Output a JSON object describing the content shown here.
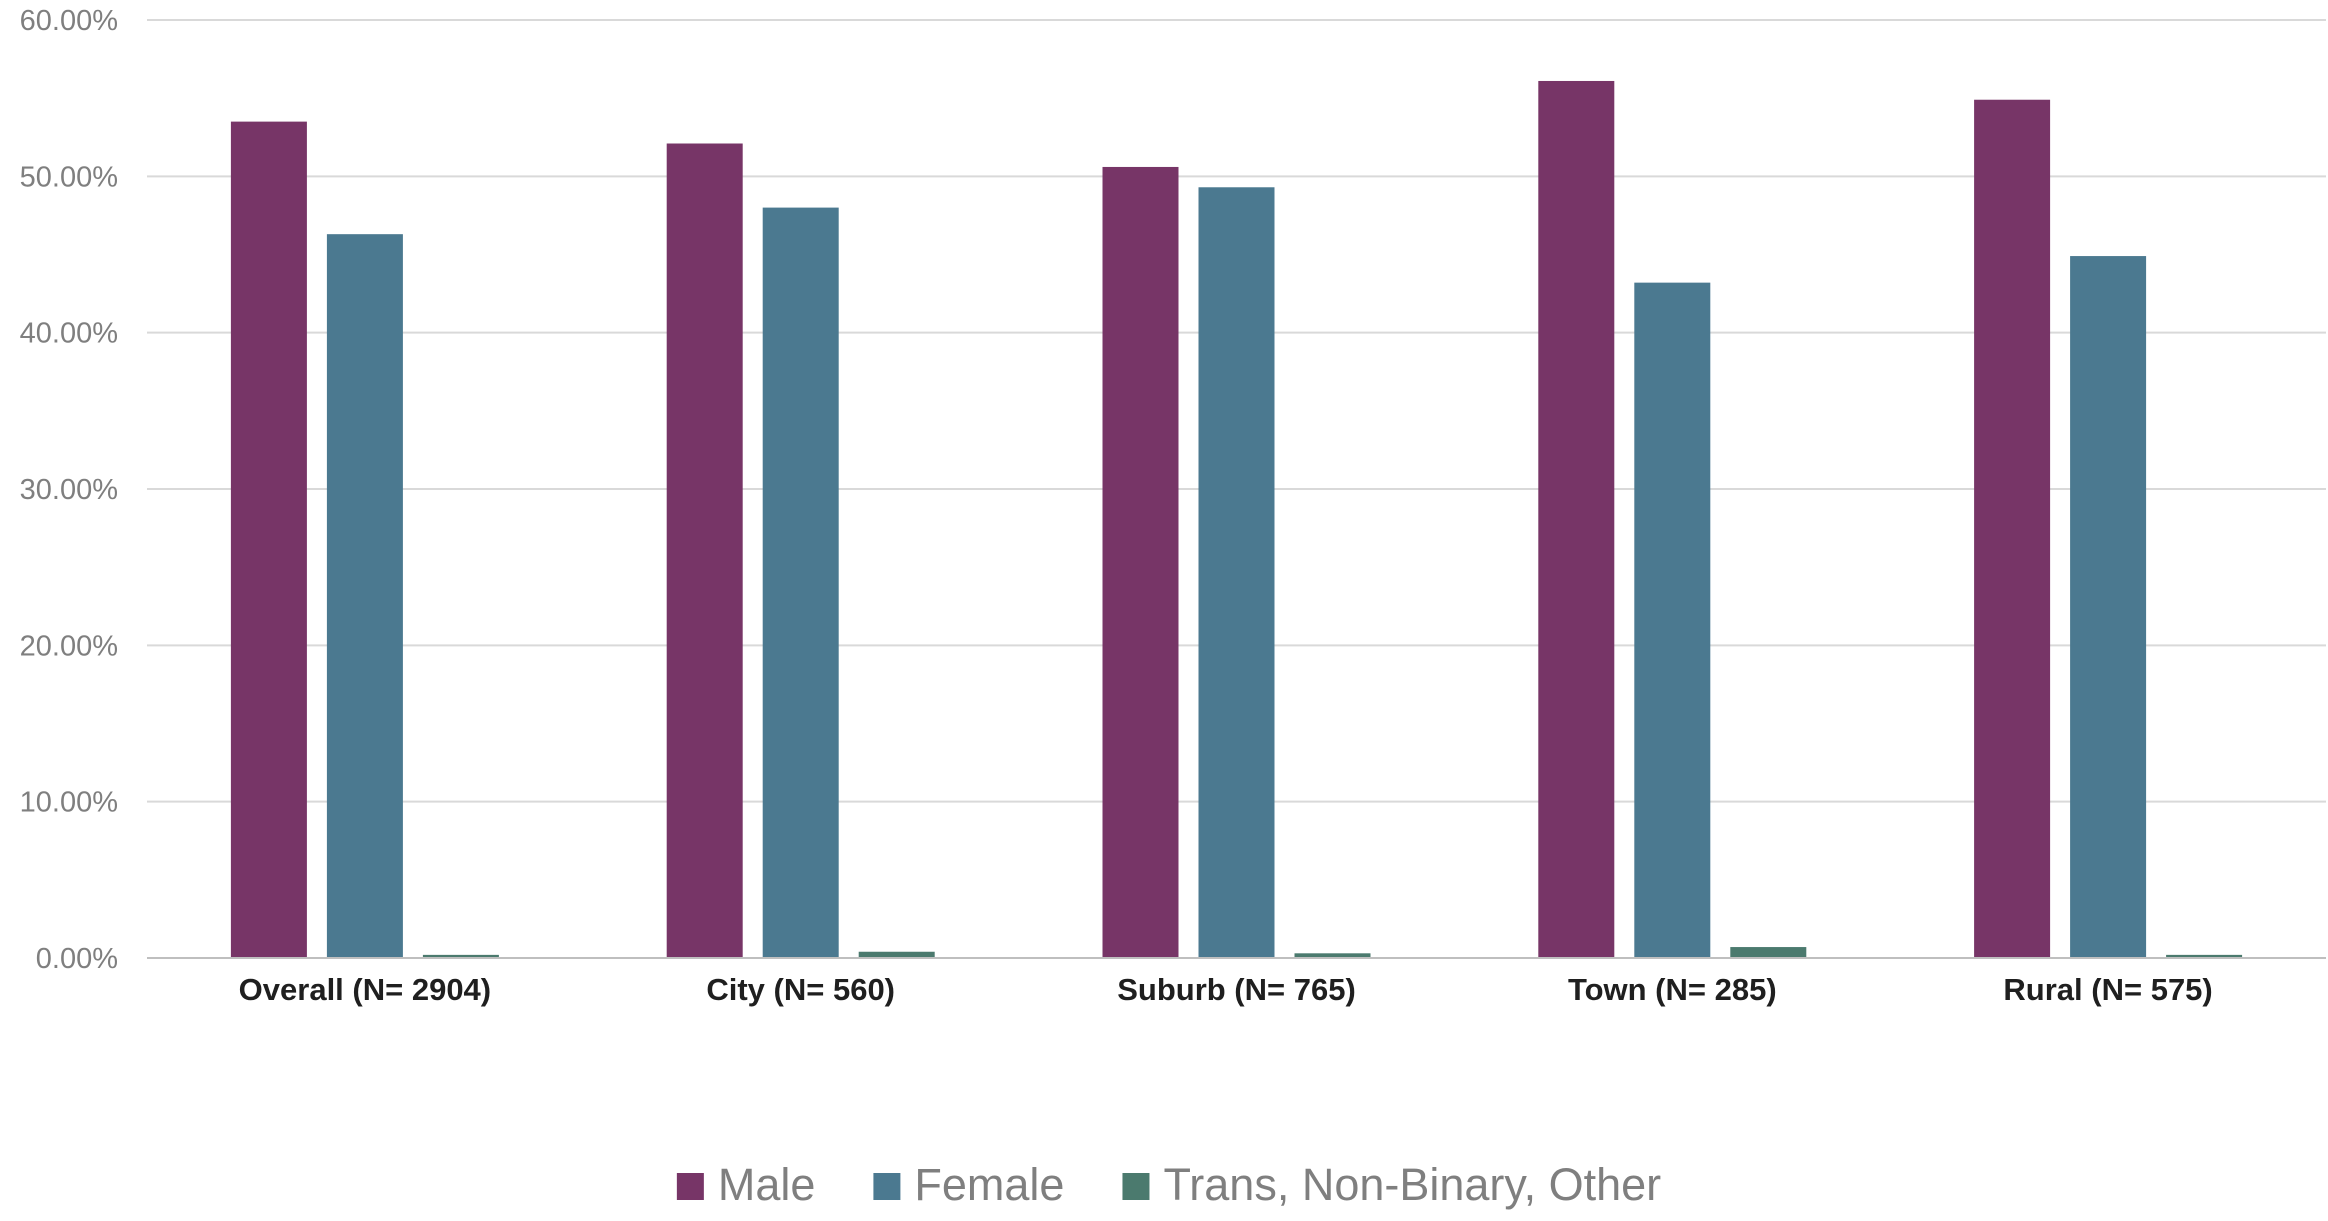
{
  "chart_data": {
    "type": "bar",
    "categories": [
      "Overall (N= 2904)",
      "City (N= 560)",
      "Suburb (N= 765)",
      "Town (N= 285)",
      "Rural (N= 575)"
    ],
    "series": [
      {
        "name": "Male",
        "color": "#773567",
        "values": [
          53.5,
          52.1,
          50.6,
          56.1,
          54.9
        ]
      },
      {
        "name": "Female",
        "color": "#4b7990",
        "values": [
          46.3,
          48.0,
          49.3,
          43.2,
          44.9
        ]
      },
      {
        "name": "Trans, Non-Binary, Other",
        "color": "#4b7a6e",
        "values": [
          0.2,
          0.4,
          0.3,
          0.7,
          0.2
        ]
      }
    ],
    "ylim": [
      0,
      60
    ],
    "yticks": [
      0,
      10,
      20,
      30,
      40,
      50,
      60
    ],
    "ytick_labels": [
      "0.00%",
      "10.00%",
      "20.00%",
      "30.00%",
      "40.00%",
      "50.00%",
      "60.00%"
    ],
    "grid": true,
    "legend_position": "bottom",
    "title": "",
    "xlabel": "",
    "ylabel": ""
  }
}
